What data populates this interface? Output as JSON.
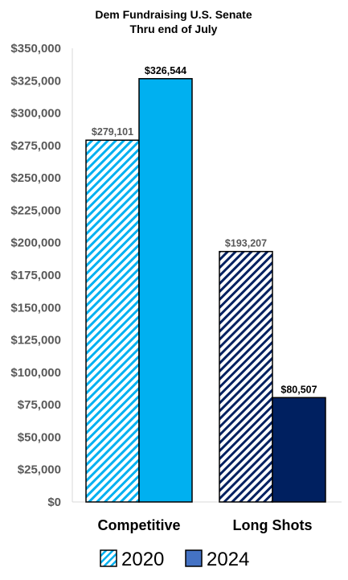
{
  "chart_data": {
    "type": "bar",
    "title": "Dem Fundraising U.S. Senate",
    "subtitle": "Thru end of July",
    "categories": [
      "Competitive",
      "Long Shots"
    ],
    "series": [
      {
        "name": "2020",
        "values": [
          279101,
          193207
        ],
        "data_labels": [
          "$279,101",
          "$193,207"
        ],
        "colors": [
          "#00b0f0",
          "#002060"
        ],
        "fill": "diagonal-hatch"
      },
      {
        "name": "2024",
        "values": [
          326544,
          80507
        ],
        "data_labels": [
          "$326,544",
          "$80,507"
        ],
        "colors": [
          "#00b0f0",
          "#002060"
        ],
        "fill": "solid"
      }
    ],
    "ylim": [
      0,
      350000
    ],
    "yticks": [
      "$0",
      "$25,000",
      "$50,000",
      "$75,000",
      "$100,000",
      "$125,000",
      "$150,000",
      "$175,000",
      "$200,000",
      "$225,000",
      "$250,000",
      "$275,000",
      "$300,000",
      "$325,000",
      "$350,000"
    ],
    "grid": false,
    "legend": {
      "placement": "bottom",
      "entries": [
        {
          "label": "2020",
          "color": "#00b0f0",
          "fill": "diagonal-hatch"
        },
        {
          "label": "2024",
          "color": "#4472c4",
          "fill": "solid"
        }
      ]
    },
    "colors": {
      "axis": "#d9d9d9",
      "data_label_2020": "#595959",
      "data_label_2024": "#000000"
    }
  }
}
